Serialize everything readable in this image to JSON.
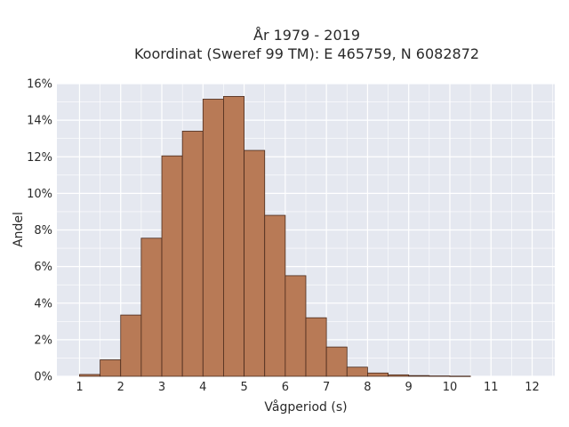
{
  "chart_data": {
    "type": "bar",
    "title": "År 1979 - 2019",
    "subtitle": "Koordinat (Sweref 99 TM): E 465759, N 6082872",
    "xlabel": "Vågperiod (s)",
    "ylabel": "Andel",
    "xlim": [
      0.45,
      12.55
    ],
    "ylim": [
      0,
      16
    ],
    "x_ticks": [
      1,
      2,
      3,
      4,
      5,
      6,
      7,
      8,
      9,
      10,
      11,
      12
    ],
    "y_ticks": [
      0,
      2,
      4,
      6,
      8,
      10,
      12,
      14,
      16
    ],
    "y_tick_labels": [
      "0%",
      "2%",
      "4%",
      "6%",
      "8%",
      "10%",
      "12%",
      "14%",
      "16%"
    ],
    "bin_width": 0.5,
    "bins": [
      {
        "start": 1.0,
        "value": 0.1
      },
      {
        "start": 1.5,
        "value": 0.9
      },
      {
        "start": 2.0,
        "value": 3.35
      },
      {
        "start": 2.5,
        "value": 7.55
      },
      {
        "start": 3.0,
        "value": 12.05
      },
      {
        "start": 3.5,
        "value": 13.4
      },
      {
        "start": 4.0,
        "value": 15.15
      },
      {
        "start": 4.5,
        "value": 15.3
      },
      {
        "start": 5.0,
        "value": 12.35
      },
      {
        "start": 5.5,
        "value": 8.8
      },
      {
        "start": 6.0,
        "value": 5.5
      },
      {
        "start": 6.5,
        "value": 3.2
      },
      {
        "start": 7.0,
        "value": 1.6
      },
      {
        "start": 7.5,
        "value": 0.5
      },
      {
        "start": 8.0,
        "value": 0.18
      },
      {
        "start": 8.5,
        "value": 0.08
      },
      {
        "start": 9.0,
        "value": 0.04
      },
      {
        "start": 9.5,
        "value": 0.02
      },
      {
        "start": 10.0,
        "value": 0.01
      }
    ],
    "bar_color": "#b87a56",
    "bar_edge_color": "#4a2a1c",
    "plot_background": "#e5e8f0",
    "grid": true,
    "grid_color": "#ffffff"
  }
}
